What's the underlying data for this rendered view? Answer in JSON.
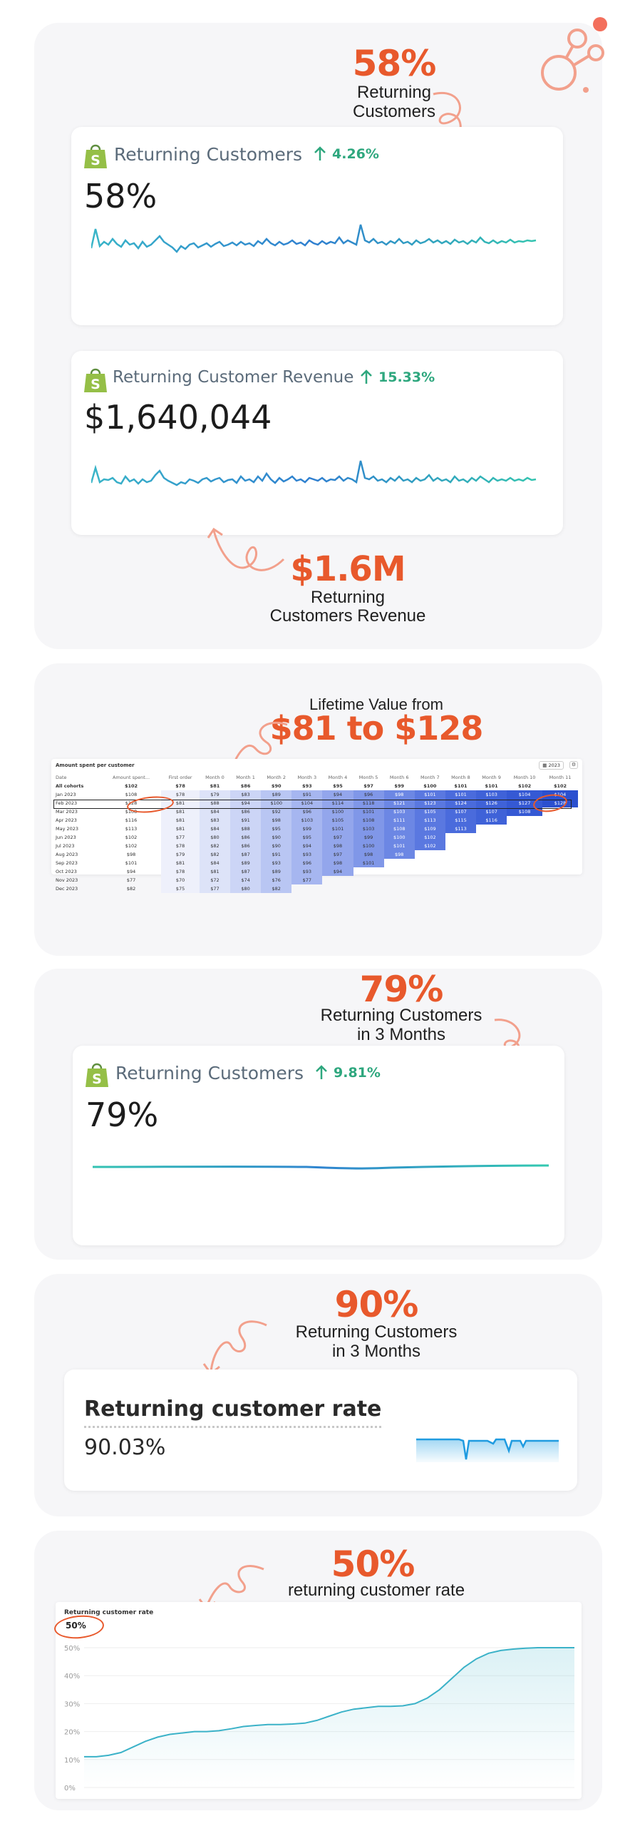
{
  "section1": {
    "big": "58%",
    "sub_line1": "Returning",
    "sub_line2": "Customers",
    "card1": {
      "title": "Returning Customers",
      "delta": "4.26%",
      "value": "58%"
    },
    "card2": {
      "title": "Returning Customer Revenue",
      "delta": "15.33%",
      "value": "$1,640,044"
    },
    "big2": "$1.6M",
    "sub2_line1": "Returning",
    "sub2_line2": "Customers Revenue"
  },
  "section2": {
    "caption": "Lifetime Value from",
    "big": "$81 to $128",
    "table": {
      "title": "Amount spent per customer",
      "year_label": "2023",
      "headers": [
        "Date",
        "Amount spent...",
        "First order",
        "Month 0",
        "Month 1",
        "Month 2",
        "Month 3",
        "Month 4",
        "Month 5",
        "Month 6",
        "Month 7",
        "Month 8",
        "Month 9",
        "Month 10",
        "Month 11"
      ],
      "rows": [
        [
          "All cohorts",
          "$102",
          "$78",
          "$81",
          "$86",
          "$90",
          "$93",
          "$95",
          "$97",
          "$99",
          "$100",
          "$101",
          "$101",
          "$102",
          "$102"
        ],
        [
          "Jan 2023",
          "$108",
          "$78",
          "$79",
          "$83",
          "$89",
          "$91",
          "$94",
          "$96",
          "$98",
          "$101",
          "$101",
          "$103",
          "$104",
          "$104"
        ],
        [
          "Feb 2023",
          "$128",
          "$81",
          "$88",
          "$94",
          "$100",
          "$104",
          "$114",
          "$118",
          "$121",
          "$123",
          "$124",
          "$126",
          "$127",
          "$128"
        ],
        [
          "Mar 2023",
          "$108",
          "$81",
          "$84",
          "$86",
          "$92",
          "$96",
          "$100",
          "$101",
          "$103",
          "$105",
          "$107",
          "$107",
          "$108",
          ""
        ],
        [
          "Apr 2023",
          "$116",
          "$81",
          "$83",
          "$91",
          "$98",
          "$103",
          "$105",
          "$108",
          "$111",
          "$113",
          "$115",
          "$116",
          "",
          ""
        ],
        [
          "May 2023",
          "$113",
          "$81",
          "$84",
          "$88",
          "$95",
          "$99",
          "$101",
          "$103",
          "$108",
          "$109",
          "$113",
          "",
          "",
          ""
        ],
        [
          "Jun 2023",
          "$102",
          "$77",
          "$80",
          "$86",
          "$90",
          "$95",
          "$97",
          "$99",
          "$100",
          "$102",
          "",
          "",
          "",
          ""
        ],
        [
          "Jul 2023",
          "$102",
          "$78",
          "$82",
          "$86",
          "$90",
          "$94",
          "$98",
          "$100",
          "$101",
          "$102",
          "",
          "",
          "",
          ""
        ],
        [
          "Aug 2023",
          "$98",
          "$79",
          "$82",
          "$87",
          "$91",
          "$93",
          "$97",
          "$98",
          "$98",
          "",
          "",
          "",
          "",
          ""
        ],
        [
          "Sep 2023",
          "$101",
          "$81",
          "$84",
          "$89",
          "$93",
          "$96",
          "$98",
          "$101",
          "",
          "",
          "",
          "",
          "",
          ""
        ],
        [
          "Oct 2023",
          "$94",
          "$78",
          "$81",
          "$87",
          "$89",
          "$93",
          "$94",
          "",
          "",
          "",
          "",
          "",
          "",
          ""
        ],
        [
          "Nov 2023",
          "$77",
          "$70",
          "$72",
          "$74",
          "$76",
          "$77",
          "",
          "",
          "",
          "",
          "",
          "",
          "",
          ""
        ],
        [
          "Dec 2023",
          "$82",
          "$75",
          "$77",
          "$80",
          "$82",
          "",
          "",
          "",
          "",
          "",
          "",
          "",
          "",
          ""
        ]
      ]
    }
  },
  "section3": {
    "big": "79%",
    "sub_line1": "Returning Customers",
    "sub_line2": "in 3 Months",
    "card": {
      "title": "Returning Customers",
      "delta": "9.81%",
      "value": "79%"
    }
  },
  "section4": {
    "big": "90%",
    "sub_line1": "Returning Customers",
    "sub_line2": "in 3 Months",
    "card": {
      "title": "Returning customer rate",
      "value": "90.03%"
    }
  },
  "section5": {
    "big": "50%",
    "sub": "returning customer rate",
    "card": {
      "title": "Returning customer rate",
      "value": "50%"
    },
    "chart_data": {
      "type": "area",
      "title": "Returning customer rate",
      "yticks": [
        "50%",
        "40%",
        "30%",
        "20%",
        "10%",
        "0%"
      ],
      "ylim": [
        0,
        50
      ],
      "x": [
        0,
        1,
        2,
        3,
        4,
        5,
        6,
        7,
        8,
        9,
        10,
        11,
        12,
        13,
        14,
        15,
        16,
        17,
        18,
        19,
        20,
        21,
        22,
        23,
        24,
        25,
        26,
        27,
        28,
        29,
        30,
        31,
        32,
        33,
        34,
        35,
        36,
        37,
        38,
        39,
        40
      ],
      "series": [
        {
          "values": [
            11,
            11,
            11.5,
            12.5,
            14.5,
            16.5,
            18,
            19,
            19.5,
            20,
            20,
            20.3,
            21,
            21.8,
            22.2,
            22.5,
            22.5,
            22.7,
            23,
            24,
            25.5,
            27,
            28,
            28.5,
            29,
            29,
            29.2,
            30,
            32,
            35,
            39,
            43,
            46,
            48,
            49,
            49.5,
            49.8,
            50,
            50,
            50,
            50
          ]
        }
      ]
    },
    "colors": {
      "accent": "#e8592c",
      "line": "#3bb2c8",
      "trend_up": "#2ea77e"
    }
  },
  "icons": {
    "shopify": "shopify-bag-icon",
    "arrow_up": "arrow-up-icon"
  }
}
